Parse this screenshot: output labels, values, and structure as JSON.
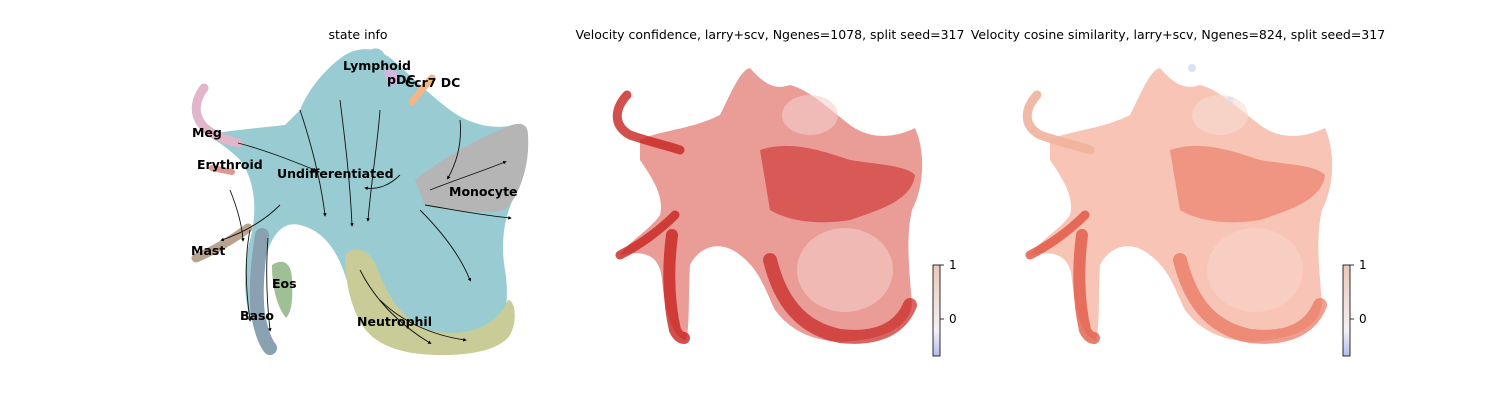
{
  "chart_data": [
    {
      "type": "scatter",
      "title": "state info",
      "cluster_labels": [
        "Lymphoid",
        "pDC",
        "Ccr7 DC",
        "Meg",
        "Erythroid",
        "Undifferentiated",
        "Monocyte",
        "Mast",
        "Eos",
        "Baso",
        "Neutrophil"
      ],
      "cluster_colors": {
        "Undifferentiated": "#7fbfc7",
        "Monocyte": "#a3a3a3",
        "Neutrophil": "#bcc07e",
        "Meg": "#dca4bd",
        "Erythroid": "#d67f78",
        "Mast": "#a88d72",
        "Eos": "#88b07e",
        "Baso": "#6e8aa0",
        "pDC": "#c4a8d6",
        "Ccr7 DC": "#f2a56a",
        "Lymphoid": "#7fbfc7"
      },
      "streamlines": true,
      "legend": "on data"
    },
    {
      "type": "scatter",
      "title": "Velocity confidence, larry+scv, Ngenes=1078, split seed=317",
      "colorbar": {
        "ticks": [
          "1",
          "0"
        ],
        "range": [
          -0.4,
          1
        ]
      },
      "point_color": "#cf2e2a"
    },
    {
      "type": "scatter",
      "title": "Velocity cosine similarity, larry+scv, Ngenes=824, split seed=317",
      "colorbar": {
        "ticks": [
          "1",
          "0"
        ],
        "range": [
          -0.4,
          1
        ]
      },
      "point_color": "#ee8a6c"
    }
  ]
}
